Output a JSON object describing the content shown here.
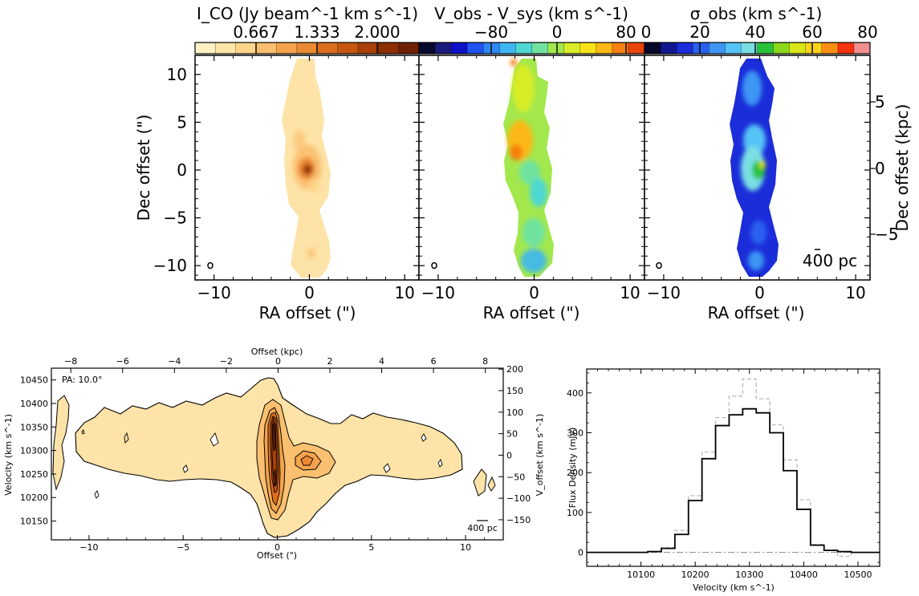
{
  "colors": {
    "flux_ramp": [
      "#fff1c4",
      "#ffe6a6",
      "#fed58a",
      "#fbc06f",
      "#f5a44d",
      "#ec8a34",
      "#dc6d1f",
      "#c6560f",
      "#a94008",
      "#8c2f04",
      "#6f2001"
    ],
    "velocity_ramp": [
      "#09092e",
      "#1a1a7a",
      "#1010c8",
      "#1f52f0",
      "#2f86f5",
      "#3fb6f2",
      "#4fd8d2",
      "#6fe2a0",
      "#a2e84d",
      "#d8ec28",
      "#f8e31a",
      "#fcb814",
      "#f78010",
      "#e9430c"
    ],
    "dispersion_ramp": [
      "#07072a",
      "#121690",
      "#1a2dd9",
      "#2b60f0",
      "#3d95f4",
      "#55c3f5",
      "#7adfe4",
      "#27c23a",
      "#8cd71a",
      "#d9e619",
      "#fcd31a",
      "#fb8f14",
      "#f4320d",
      "#f28f8f"
    ],
    "line_black": "#000000",
    "line_grey": "#b9b9b9",
    "fill_light": "#fde3a7"
  },
  "chart_data": [
    {
      "type": "heatmap",
      "colorbar_label": "I_CO (Jy beam^-1 km s^-1)",
      "colorbar_ticks": [
        "0.667",
        "1.333",
        "2.000"
      ],
      "colorbar_range": [
        0,
        2.67
      ],
      "xlabel": "RA offset (\")",
      "ylabel": "Dec offset (\")",
      "xticks": [
        "−10",
        "0",
        "10"
      ],
      "yticks": [
        "10",
        "5",
        "0",
        "−5",
        "−10"
      ],
      "xlim": [
        -12,
        11.5
      ],
      "ylim": [
        -11.5,
        12
      ],
      "peak": {
        "x": 0,
        "y": 0,
        "value": 2.5
      },
      "cloud_profile": [
        {
          "y": 11.5,
          "half_width": 1.0
        },
        {
          "y": 8,
          "half_width": 1.3
        },
        {
          "y": 4,
          "half_width": 1.6
        },
        {
          "y": 0,
          "half_width": 2.2
        },
        {
          "y": -4,
          "half_width": 1.2
        },
        {
          "y": -8,
          "half_width": 1.5
        },
        {
          "y": -11,
          "half_width": 1.2
        }
      ],
      "beam": {
        "x": -10.4,
        "y": -10.3
      }
    },
    {
      "type": "heatmap",
      "colorbar_label": "V_obs - V_sys (km s^-1)",
      "colorbar_ticks": [
        "−80",
        "0",
        "80"
      ],
      "colorbar_range": [
        -120,
        120
      ],
      "xlabel": "RA offset (\")",
      "xticks": [
        "−10",
        "0",
        "10"
      ],
      "xlim": [
        -12,
        11.5
      ],
      "ylim": [
        -11.5,
        12
      ],
      "velocity_gradient": [
        {
          "y": 11,
          "v": 40
        },
        {
          "y": 6,
          "v": 35
        },
        {
          "y": 2,
          "v": 40
        },
        {
          "y": 0,
          "v": 0
        },
        {
          "y": -3,
          "v": -35
        },
        {
          "y": -7,
          "v": -45
        },
        {
          "y": -11,
          "v": -60
        }
      ],
      "beam": {
        "x": -10.4,
        "y": -10.3
      }
    },
    {
      "type": "heatmap",
      "colorbar_label": "σ_obs (km s^-1)",
      "colorbar_ticks": [
        "0",
        "20",
        "40",
        "60",
        "80"
      ],
      "colorbar_range": [
        0,
        80
      ],
      "xlabel": "RA offset (\")",
      "ylabel_right": "Dec offset (kpc)",
      "xticks": [
        "−10",
        "0",
        "10"
      ],
      "yticks_right": [
        "5",
        "0",
        "−5"
      ],
      "xlim": [
        -12,
        11.5
      ],
      "ylim": [
        -11.5,
        12
      ],
      "scalebar_label": "400 pc",
      "dispersion_profile": [
        {
          "y": 11,
          "sigma": 12
        },
        {
          "y": 6,
          "sigma": 22
        },
        {
          "y": 0,
          "sigma": 38
        },
        {
          "y": -5,
          "sigma": 18
        },
        {
          "y": -11,
          "sigma": 14
        }
      ],
      "beam": {
        "x": -10.4,
        "y": -10.3
      }
    },
    {
      "type": "heatmap",
      "subtype": "position-velocity diagram",
      "annotation": "PA: 10.0°",
      "xlabel": "Offset (\")",
      "xlabel_top": "Offset (kpc)",
      "ylabel": "Velocity (km s^-1)",
      "ylabel_right": "V_offset (km s^-1)",
      "xticks": [
        "−10",
        "−5",
        "0",
        "5",
        "10"
      ],
      "xticks_top": [
        "−8",
        "−6",
        "−4",
        "−2",
        "0",
        "2",
        "4",
        "6",
        "8"
      ],
      "yticks": [
        "10450",
        "10400",
        "10350",
        "10300",
        "10250",
        "10200",
        "10150"
      ],
      "yticks_right": [
        "200",
        "150",
        "100",
        "50",
        "0",
        "−50",
        "−100",
        "−150"
      ],
      "xlim": [
        -12,
        12
      ],
      "ylim": [
        10110,
        10475
      ],
      "scalebar_label": "400 pc",
      "outer_contour_velocity_range": [
        10230,
        10370
      ],
      "peaks": [
        {
          "offset": 0.0,
          "velocity": 10340
        },
        {
          "offset": 0.0,
          "velocity": 10230
        },
        {
          "offset": 1.2,
          "velocity": 10290
        }
      ]
    },
    {
      "type": "line",
      "subtype": "step histogram",
      "xlabel": "Velocity (km s^-1)",
      "ylabel": "Flux Density (mJy)",
      "xticks": [
        "10100",
        "10200",
        "10300",
        "10400",
        "10500"
      ],
      "yticks": [
        "0",
        "100",
        "200",
        "300",
        "400"
      ],
      "xlim": [
        10000,
        10540
      ],
      "ylim": [
        -35,
        460
      ],
      "bin_width": 25,
      "series": [
        {
          "style": "solid-black",
          "x": [
            10100,
            10125,
            10150,
            10175,
            10200,
            10225,
            10250,
            10275,
            10300,
            10325,
            10350,
            10375,
            10400,
            10425,
            10450,
            10475
          ],
          "values": [
            0,
            2,
            10,
            45,
            130,
            235,
            318,
            345,
            360,
            350,
            300,
            205,
            108,
            18,
            5,
            2
          ]
        },
        {
          "style": "dashed-grey",
          "x": [
            10100,
            10125,
            10150,
            10175,
            10200,
            10225,
            10250,
            10275,
            10300,
            10325,
            10350,
            10375,
            10400,
            10425,
            10450,
            10475
          ],
          "values": [
            0,
            3,
            12,
            55,
            142,
            252,
            338,
            392,
            435,
            385,
            320,
            232,
            132,
            20,
            6,
            -10
          ]
        }
      ]
    }
  ]
}
